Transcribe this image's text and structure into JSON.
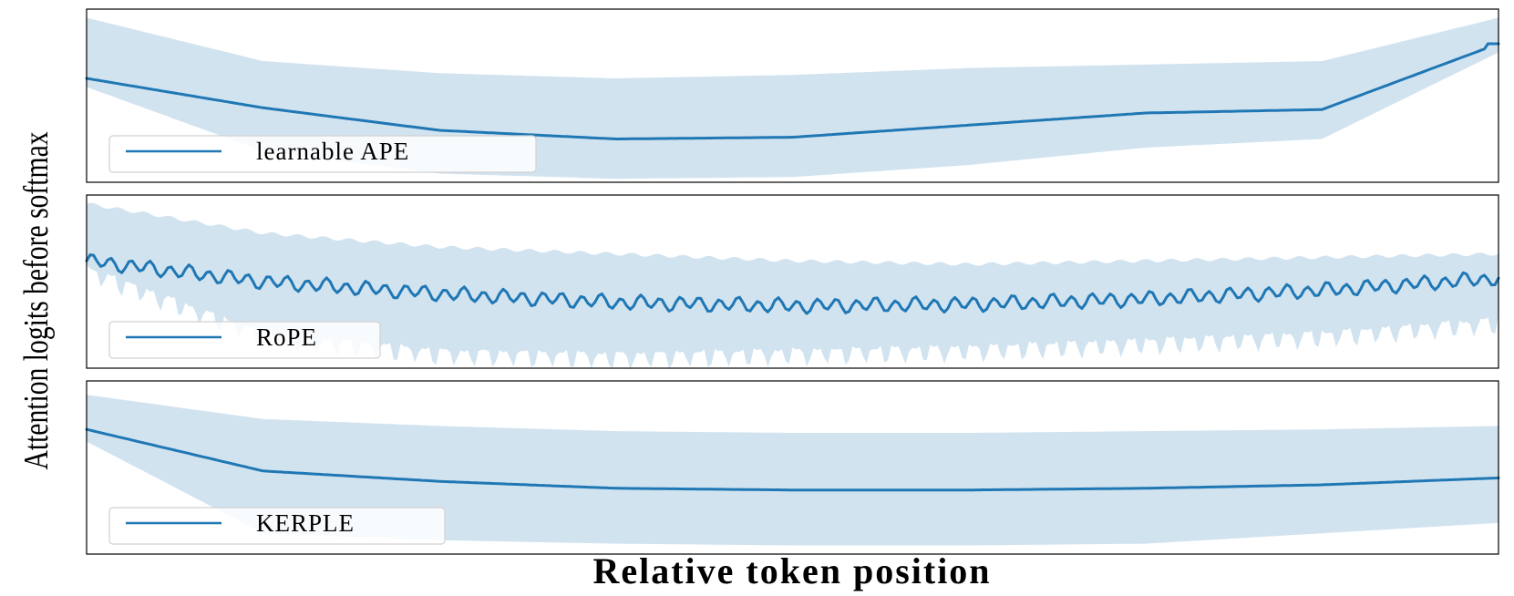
{
  "chart_data": [
    {
      "type": "area",
      "series": [
        {
          "name": "learnable APE",
          "mean": [
            0.6,
            0.43,
            0.3,
            0.25,
            0.26,
            0.33,
            0.4,
            0.42,
            0.8
          ],
          "lower": [
            0.55,
            0.18,
            0.05,
            0.02,
            0.03,
            0.1,
            0.2,
            0.25,
            0.75
          ],
          "upper": [
            0.95,
            0.7,
            0.63,
            0.6,
            0.62,
            0.66,
            0.68,
            0.7,
            0.95
          ]
        }
      ],
      "legend": "bottom-left",
      "grid": false
    },
    {
      "type": "area",
      "series": [
        {
          "name": "RoPE",
          "mean": [
            0.62,
            0.5,
            0.43,
            0.38,
            0.36,
            0.37,
            0.4,
            0.45,
            0.52
          ],
          "lower": [
            0.6,
            0.22,
            0.12,
            0.1,
            0.12,
            0.14,
            0.18,
            0.22,
            0.3
          ],
          "upper": [
            0.95,
            0.78,
            0.7,
            0.66,
            0.62,
            0.6,
            0.62,
            0.64,
            0.66
          ]
        }
      ],
      "legend": "bottom-left",
      "grid": false
    },
    {
      "type": "area",
      "series": [
        {
          "name": "KERPLE",
          "mean": [
            0.72,
            0.48,
            0.42,
            0.38,
            0.37,
            0.37,
            0.38,
            0.4,
            0.44
          ],
          "lower": [
            0.65,
            0.12,
            0.08,
            0.06,
            0.05,
            0.05,
            0.06,
            0.12,
            0.18
          ],
          "upper": [
            0.92,
            0.78,
            0.74,
            0.71,
            0.7,
            0.7,
            0.71,
            0.72,
            0.74
          ]
        }
      ],
      "legend": "bottom-left",
      "grid": false
    }
  ],
  "xlabel": "Relative token position",
  "ylabel": "Attention logits before softmax",
  "colors": {
    "line": "#1f77b4",
    "band": "#d2e3f0",
    "frame": "#000000"
  }
}
